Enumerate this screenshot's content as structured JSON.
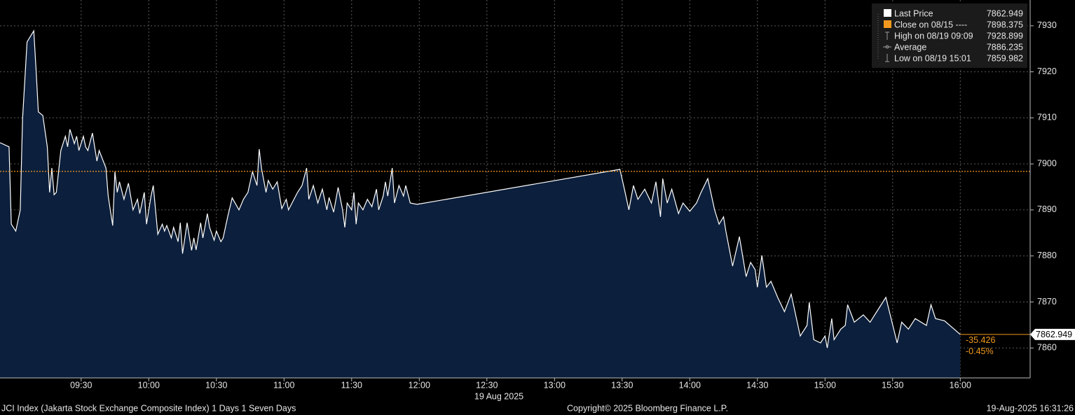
{
  "chart_data": {
    "type": "area",
    "series": [
      {
        "name": "JCI Index",
        "color": "#ffffff",
        "fill": "#0c1f3c",
        "x": [
          "08:54",
          "08:58",
          "08:59",
          "09:01",
          "09:03",
          "09:04",
          "09:06",
          "09:09",
          "09:10",
          "09:11",
          "09:13",
          "09:15",
          "09:16",
          "09:17",
          "09:18",
          "09:19",
          "09:21",
          "09:23",
          "09:24",
          "09:25",
          "09:26",
          "09:27",
          "09:28",
          "09:29",
          "09:31",
          "09:32",
          "09:33",
          "09:35",
          "09:37",
          "09:38",
          "09:41",
          "09:42",
          "09:44",
          "09:45",
          "09:46",
          "09:47",
          "09:49",
          "09:51",
          "09:53",
          "09:55",
          "09:56",
          "09:58",
          "09:59",
          "10:01",
          "10:02",
          "10:04",
          "10:06",
          "10:07",
          "10:08",
          "10:10",
          "10:11",
          "10:13",
          "10:14",
          "10:15",
          "10:17",
          "10:19",
          "10:20",
          "10:21",
          "10:23",
          "10:24",
          "10:26",
          "10:27",
          "10:29",
          "10:30",
          "10:32",
          "10:33",
          "10:35",
          "10:37",
          "10:40",
          "10:42",
          "10:44",
          "10:46",
          "10:48",
          "10:49",
          "10:50",
          "10:52",
          "10:53",
          "10:55",
          "10:57",
          "10:59",
          "11:01",
          "11:02",
          "11:06",
          "11:08",
          "11:10",
          "11:11",
          "11:13",
          "11:15",
          "11:17",
          "11:19",
          "11:20",
          "11:22",
          "11:24",
          "11:26",
          "11:27",
          "11:28",
          "11:30",
          "11:31",
          "11:32",
          "11:33",
          "11:35",
          "11:37",
          "11:39",
          "11:41",
          "11:42",
          "11:44",
          "11:45",
          "11:46",
          "11:48",
          "11:49",
          "11:51",
          "11:53",
          "11:54",
          "11:56",
          "11:59",
          "13:29",
          "13:31",
          "13:33",
          "13:35",
          "13:37",
          "13:40",
          "13:43",
          "13:45",
          "13:47",
          "13:48",
          "13:50",
          "13:52",
          "13:55",
          "13:57",
          "14:00",
          "14:03",
          "14:05",
          "14:08",
          "14:11",
          "14:13",
          "14:15",
          "14:16",
          "14:19",
          "14:22",
          "14:25",
          "14:27",
          "14:29",
          "14:30",
          "14:32",
          "14:34",
          "14:36",
          "14:39",
          "14:42",
          "14:45",
          "14:49",
          "14:52",
          "14:53",
          "14:55",
          "14:58",
          "15:00",
          "15:01",
          "15:03",
          "15:04",
          "15:07",
          "15:09",
          "15:10",
          "15:13",
          "15:17",
          "15:20",
          "15:24",
          "15:27",
          "15:32",
          "15:34",
          "15:37",
          "15:40",
          "15:45",
          "15:47",
          "15:49",
          "15:53",
          "16:00"
        ],
        "values": [
          7904.6,
          7903.7,
          7886.9,
          7885.4,
          7890.0,
          7909.8,
          7926.5,
          7928.9,
          7920.4,
          7911.3,
          7910.5,
          7903.7,
          7893.8,
          7899.1,
          7893.3,
          7893.8,
          7902.9,
          7906.0,
          7903.7,
          7907.5,
          7906.0,
          7904.4,
          7906.0,
          7902.9,
          7906.0,
          7903.7,
          7902.9,
          7906.7,
          7900.6,
          7902.9,
          7899.1,
          7893.0,
          7886.6,
          7898.3,
          7893.8,
          7896.1,
          7892.3,
          7895.8,
          7890.0,
          7892.3,
          7889.2,
          7893.8,
          7886.9,
          7893.0,
          7895.3,
          7884.7,
          7886.9,
          7885.4,
          7886.6,
          7883.9,
          7886.2,
          7883.1,
          7887.2,
          7880.5,
          7887.2,
          7881.2,
          7883.9,
          7881.3,
          7887.2,
          7883.9,
          7889.2,
          7886.2,
          7883.4,
          7885.4,
          7883.1,
          7883.9,
          7888.5,
          7892.6,
          7890.0,
          7892.3,
          7893.8,
          7898.3,
          7895.3,
          7903.2,
          7899.1,
          7893.8,
          7896.4,
          7894.5,
          7896.1,
          7890.3,
          7892.3,
          7890.0,
          7893.8,
          7895.3,
          7899.1,
          7892.3,
          7895.3,
          7891.5,
          7894.5,
          7890.0,
          7892.7,
          7889.5,
          7894.9,
          7890.0,
          7886.2,
          7891.5,
          7890.0,
          7893.8,
          7886.9,
          7891.5,
          7890.0,
          7892.3,
          7890.7,
          7894.5,
          7890.0,
          7893.0,
          7896.1,
          7893.0,
          7899.1,
          7891.5,
          7895.3,
          7893.0,
          7895.3,
          7891.5,
          7891.2,
          7898.8,
          7894.5,
          7890.0,
          7895.3,
          7892.3,
          7894.5,
          7891.5,
          7896.1,
          7888.5,
          7896.8,
          7891.5,
          7894.5,
          7889.2,
          7891.5,
          7889.7,
          7891.5,
          7893.8,
          7896.8,
          7890.0,
          7886.9,
          7888.5,
          7885.4,
          7877.8,
          7884.2,
          7875.5,
          7878.6,
          7877.0,
          7873.2,
          7880.1,
          7873.2,
          7874.5,
          7871.0,
          7867.9,
          7871.7,
          7862.6,
          7864.9,
          7869.9,
          7861.8,
          7861.1,
          7862.6,
          7860.0,
          7866.4,
          7861.8,
          7864.1,
          7864.9,
          7869.4,
          7865.6,
          7867.2,
          7865.6,
          7868.7,
          7871.0,
          7861.1,
          7865.6,
          7864.1,
          7866.4,
          7864.9,
          7869.4,
          7866.4,
          7865.9,
          7862.949
        ]
      }
    ],
    "xlim": [
      "08:54",
      "16:31"
    ],
    "xticks": [
      "09:30",
      "10:00",
      "10:30",
      "11:00",
      "11:30",
      "12:00",
      "12:30",
      "13:00",
      "13:30",
      "14:00",
      "14:30",
      "15:00",
      "15:30",
      "16:00"
    ],
    "date_label": "19 Aug 2025",
    "ylim": [
      7853.5,
      7935.6
    ],
    "yticks": [
      7860,
      7870,
      7880,
      7890,
      7900,
      7910,
      7920,
      7930
    ],
    "grid": true,
    "reference_color": "#f39a1e",
    "legend": [
      {
        "label": "Last Price",
        "value": 7862.949
      },
      {
        "label": "Close on 08/15 ----",
        "value": 7898.375
      },
      {
        "label": "High on 08/19 09:09",
        "value": 7928.899
      },
      {
        "label": "Average",
        "value": 7886.235
      },
      {
        "label": "Low on 08/19 15:01",
        "value": 7859.982
      }
    ],
    "change": -35.426,
    "change_pct": {
      "value": -0.45,
      "label": "-0.45%"
    },
    "footer": {
      "left": "JCI Index (Jakarta Stock Exchange Composite Index) 1 Days 1 Seven Days",
      "center": "Copyright© 2025 Bloomberg Finance L.P.",
      "right": "19-Aug-2025 16:31:26"
    }
  }
}
